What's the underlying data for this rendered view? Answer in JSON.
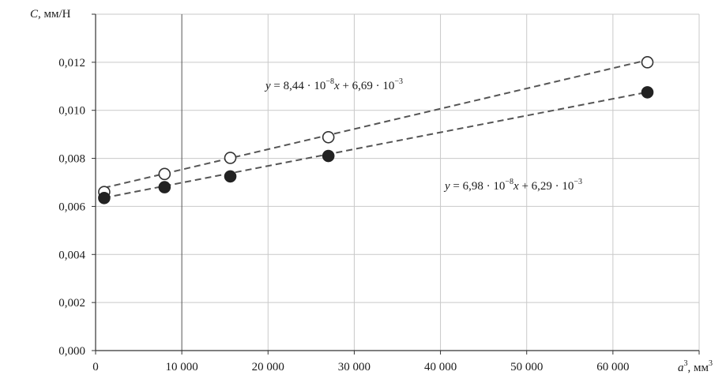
{
  "chart_data": {
    "type": "scatter",
    "ylabel_var": "C",
    "ylabel_unit": ", мм/Н",
    "xlabel_var": "a",
    "xlabel_sup": "3",
    "xlabel_unit": ", мм",
    "xlabel_unit_sup": "3",
    "xlim": [
      0,
      70000
    ],
    "ylim": [
      0,
      0.014
    ],
    "x_ticks": [
      0,
      10000,
      20000,
      30000,
      40000,
      50000,
      60000
    ],
    "x_tick_labels": [
      "0",
      "10 000",
      "20 000",
      "30 000",
      "40 000",
      "50 000",
      "60 000"
    ],
    "y_ticks": [
      0,
      0.002,
      0.004,
      0.006,
      0.008,
      0.01,
      0.012
    ],
    "y_tick_labels": [
      "0,000",
      "0,002",
      "0,004",
      "0,006",
      "0,008",
      "0,010",
      "0,012"
    ],
    "grid": true,
    "series": [
      {
        "marker": "open-circle",
        "x": [
          1000,
          8000,
          15625,
          27000,
          64000
        ],
        "y": [
          0.0066,
          0.00735,
          0.00802,
          0.00888,
          0.012
        ],
        "trend": {
          "slope": 8.44e-08,
          "intercept": 0.00669
        },
        "equation": {
          "y": "y",
          "eq1": " = 8,44 · 10",
          "exp1": "−8",
          "x": "x",
          "eq2": " + 6,69 · 10",
          "exp2": "−3"
        }
      },
      {
        "marker": "filled-circle",
        "x": [
          1000,
          8000,
          15625,
          27000,
          64000
        ],
        "y": [
          0.00635,
          0.0068,
          0.00725,
          0.0081,
          0.01075
        ],
        "trend": {
          "slope": 6.98e-08,
          "intercept": 0.00629
        },
        "equation": {
          "y": "y",
          "eq1": " = 6,98 · 10",
          "exp1": "−8",
          "x": "x",
          "eq2": " + 6,29 · 10",
          "exp2": "−3"
        }
      }
    ]
  }
}
